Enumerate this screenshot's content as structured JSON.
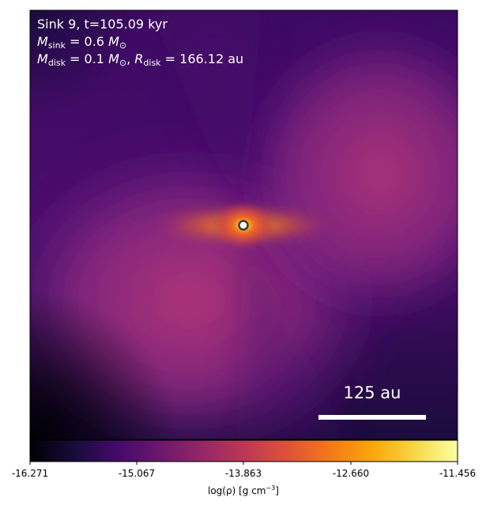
{
  "annotations": {
    "sink_line": "Sink 9, t=105.09 kyr",
    "msink_symbol": "M",
    "msink_sub": "sink",
    "msink_value": "= 0.6",
    "msun_symbol": "M",
    "msun_sub": "⊙",
    "mdisk_symbol": "M",
    "mdisk_sub": "disk",
    "mdisk_value": "= 0.1",
    "rdisk_symbol": "R",
    "rdisk_sub": "disk",
    "rdisk_value": "= 166.12 au"
  },
  "scalebar": {
    "label": "125 au"
  },
  "colorbar": {
    "colormap": "inferno",
    "ticks": [
      "-16.271",
      "-15.067",
      "-13.863",
      "-12.660",
      "-11.456"
    ],
    "label_prefix": "log(ρ) [g cm",
    "label_exp": "−3",
    "label_suffix": "]"
  },
  "colors": {
    "background_dark": "#000004",
    "sink_marker_fill": "#ffffff",
    "sink_marker_edge": "#3a3a3a"
  }
}
